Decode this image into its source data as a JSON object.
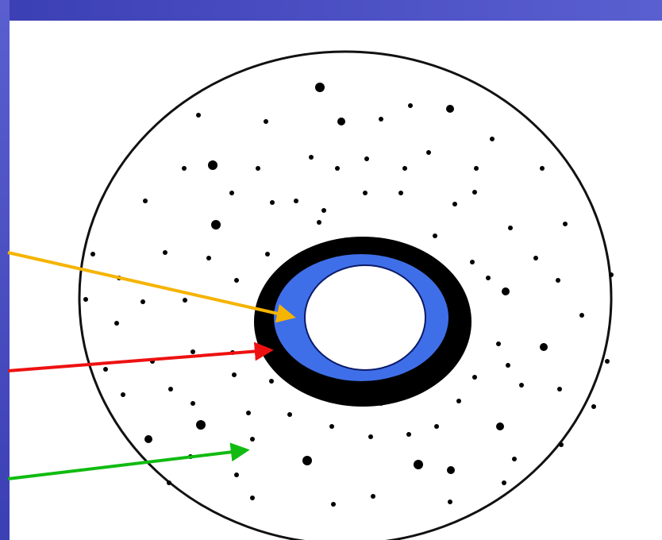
{
  "colors": {
    "slide_frame": "#3b3fb4",
    "slide_frame_light": "#5a5fd0",
    "background": "#ffffff",
    "outline": "#111111",
    "dark_ring": "#000000",
    "inner_ring": "#3f6fe8",
    "particle": "#000000",
    "arrow_inner_ring": "#f5b400",
    "arrow_dark_ring": "#ee1111",
    "arrow_cytoplasm": "#11bb11"
  },
  "diagram": {
    "shapes": [
      "outer-circle",
      "dark-ring",
      "blue-ring",
      "white-core",
      "dots"
    ],
    "arrows": [
      "arrow-yellow",
      "arrow-red",
      "arrow-green"
    ]
  }
}
